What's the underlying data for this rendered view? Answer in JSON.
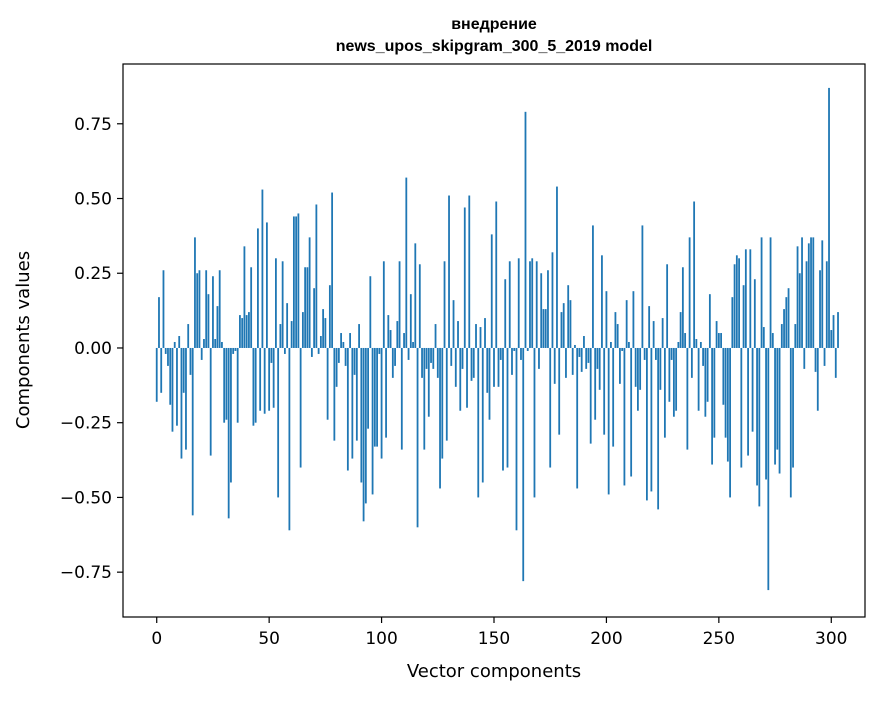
{
  "chart_data": {
    "type": "bar",
    "title_line1": "внедрение",
    "title_line2": "news_upos_skipgram_300_5_2019 model",
    "xlabel": "Vector components",
    "ylabel": "Components values",
    "xlim": [
      -15,
      315
    ],
    "ylim": [
      -0.9,
      0.95
    ],
    "xticks": [
      0,
      50,
      100,
      150,
      200,
      250,
      300
    ],
    "xtick_labels": [
      "0",
      "50",
      "100",
      "150",
      "200",
      "250",
      "300"
    ],
    "yticks": [
      -0.75,
      -0.5,
      -0.25,
      0.0,
      0.25,
      0.5,
      0.75
    ],
    "ytick_labels": [
      "−0.75",
      "−0.50",
      "−0.25",
      "0.00",
      "0.25",
      "0.50",
      "0.75"
    ],
    "bar_color": "#1f77b4",
    "values": [
      -0.18,
      0.17,
      -0.15,
      0.26,
      -0.02,
      -0.06,
      -0.19,
      -0.28,
      0.02,
      -0.26,
      0.04,
      -0.37,
      -0.15,
      -0.34,
      0.08,
      -0.09,
      -0.56,
      0.37,
      0.25,
      0.26,
      -0.04,
      0.03,
      0.26,
      0.18,
      -0.36,
      0.24,
      0.03,
      0.14,
      0.26,
      0.02,
      -0.25,
      -0.24,
      -0.57,
      -0.45,
      -0.02,
      -0.01,
      -0.25,
      0.11,
      0.1,
      0.34,
      0.11,
      0.12,
      0.27,
      -0.26,
      -0.25,
      0.4,
      -0.21,
      0.53,
      -0.22,
      0.42,
      -0.21,
      -0.05,
      -0.2,
      0.3,
      -0.5,
      0.08,
      0.29,
      -0.02,
      0.15,
      -0.61,
      0.09,
      0.44,
      0.44,
      0.45,
      -0.4,
      0.12,
      0.27,
      0.27,
      0.37,
      -0.03,
      0.2,
      0.48,
      -0.02,
      0.04,
      0.13,
      0.1,
      -0.24,
      0.21,
      0.52,
      -0.31,
      -0.13,
      -0.05,
      0.05,
      0.02,
      -0.06,
      -0.41,
      0.05,
      -0.37,
      -0.09,
      -0.31,
      0.08,
      -0.45,
      -0.58,
      -0.52,
      -0.27,
      0.24,
      -0.49,
      -0.33,
      -0.33,
      -0.02,
      -0.37,
      0.29,
      -0.3,
      0.11,
      0.06,
      -0.1,
      -0.06,
      0.09,
      0.29,
      -0.34,
      0.05,
      0.57,
      -0.04,
      0.18,
      0.02,
      0.35,
      -0.6,
      0.28,
      -0.1,
      -0.34,
      -0.07,
      -0.23,
      -0.05,
      -0.07,
      0.08,
      -0.1,
      -0.47,
      -0.37,
      0.29,
      -0.31,
      0.51,
      -0.06,
      0.16,
      -0.13,
      0.09,
      -0.21,
      -0.07,
      0.47,
      -0.2,
      0.51,
      -0.11,
      -0.1,
      0.08,
      -0.5,
      0.07,
      -0.45,
      0.1,
      -0.15,
      -0.24,
      0.38,
      -0.13,
      0.49,
      -0.13,
      -0.04,
      -0.41,
      0.23,
      -0.4,
      0.29,
      -0.09,
      -0.01,
      -0.61,
      0.3,
      -0.04,
      -0.78,
      0.79,
      -0.01,
      0.29,
      0.3,
      -0.5,
      0.29,
      -0.07,
      0.25,
      0.13,
      0.13,
      0.26,
      -0.4,
      0.32,
      -0.12,
      0.54,
      -0.29,
      0.12,
      0.15,
      -0.1,
      0.21,
      0.16,
      -0.09,
      0.01,
      -0.47,
      -0.03,
      -0.08,
      0.04,
      -0.07,
      -0.05,
      -0.32,
      0.41,
      -0.24,
      -0.07,
      -0.14,
      0.31,
      -0.29,
      0.19,
      -0.49,
      0.02,
      -0.33,
      0.12,
      0.08,
      -0.12,
      -0.01,
      -0.46,
      0.16,
      0.02,
      -0.43,
      0.19,
      -0.13,
      -0.21,
      -0.14,
      0.41,
      -0.04,
      -0.51,
      0.14,
      -0.48,
      0.09,
      -0.04,
      -0.54,
      -0.14,
      0.1,
      -0.3,
      0.28,
      -0.18,
      -0.04,
      -0.23,
      -0.21,
      0.02,
      0.12,
      0.27,
      0.05,
      -0.34,
      0.37,
      -0.1,
      0.49,
      0.03,
      -0.21,
      0.02,
      -0.06,
      -0.23,
      -0.18,
      0.18,
      -0.39,
      -0.3,
      0.09,
      0.05,
      0.05,
      -0.19,
      -0.3,
      -0.38,
      -0.5,
      0.17,
      0.28,
      0.31,
      0.3,
      -0.4,
      0.21,
      0.33,
      -0.36,
      0.33,
      -0.28,
      0.23,
      -0.46,
      -0.53,
      0.37,
      0.07,
      -0.44,
      -0.81,
      0.37,
      0.05,
      -0.39,
      -0.34,
      -0.42,
      0.08,
      0.13,
      0.17,
      0.2,
      -0.5,
      -0.4,
      0.08,
      0.34,
      0.25,
      0.37,
      -0.07,
      0.29,
      0.35,
      0.37,
      0.37,
      -0.08,
      -0.21,
      0.26,
      0.36,
      -0.06,
      0.29,
      0.87,
      0.06,
      0.11,
      -0.1,
      0.12
    ]
  }
}
